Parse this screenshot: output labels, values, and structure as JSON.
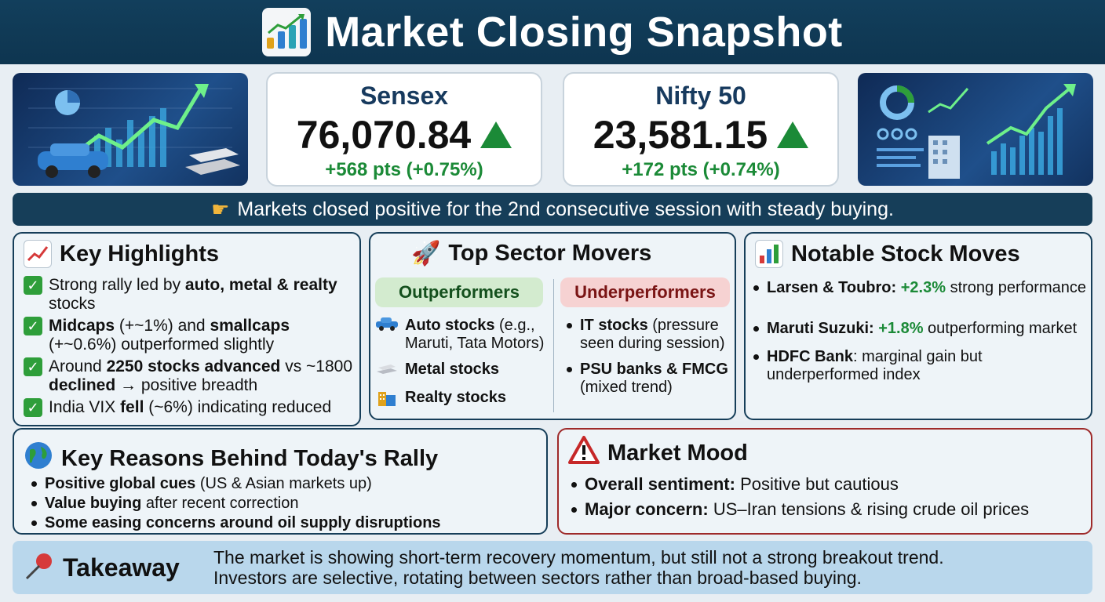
{
  "header": {
    "title": "Market Closing Snapshot",
    "icon": "bar-chart-icon"
  },
  "indices": [
    {
      "name": "Sensex",
      "value": "76,070.84",
      "change": "+568 pts (+0.75%)",
      "direction": "up"
    },
    {
      "name": "Nifty 50",
      "value": "23,581.15",
      "change": "+172 pts (+0.74%)",
      "direction": "up"
    }
  ],
  "banner": {
    "icon": "pointing-hand-icon",
    "text": "Markets closed positive for the 2nd consecutive session with steady buying."
  },
  "highlights": {
    "title": "Key Highlights",
    "icon": "chart-increasing-icon",
    "items": [
      {
        "pre": "Strong rally led by ",
        "bold": "auto, metal & realty",
        "post": " stocks"
      },
      {
        "bold": "Midcaps",
        "post": " (+~1%) and ",
        "bold2": "smallcaps",
        "post2": " (+~0.6%) outperformed slightly"
      },
      {
        "pre": "Around ",
        "bold": "2250 stocks advanced",
        "post": " vs ~1800 ",
        "bold2": "declined",
        "post2": " → positive breadth"
      },
      {
        "pre": "India VIX ",
        "bold": "fell",
        "post": " (~6%) indicating reduced"
      }
    ]
  },
  "sectors": {
    "title": "Top Sector Movers",
    "icon": "rocket-icon",
    "outperformers_label": "Outperformers",
    "underperformers_label": "Underperformers",
    "outperformers": [
      {
        "bold": "Auto stocks",
        "rest": " (e.g., Maruti, Tata Motors)",
        "icon": "car-icon"
      },
      {
        "bold": "Metal stocks",
        "rest": "",
        "icon": "metal-bars-icon"
      },
      {
        "bold": "Realty stocks",
        "rest": "",
        "icon": "building-icon"
      }
    ],
    "underperformers": [
      {
        "bold": "IT stocks",
        "rest": " (pressure seen during session)"
      },
      {
        "bold": "PSU banks & FMCG",
        "rest": " (mixed trend)"
      }
    ]
  },
  "stocks": {
    "title": "Notable Stock Moves",
    "icon": "bar-chart-icon",
    "items": [
      {
        "name": "Larsen & Toubro:",
        "change": "+2.3%",
        "rest": " strong performance"
      },
      {
        "name": "Maruti Suzuki:",
        "change": "+1.8%",
        "rest": " outperforming market"
      },
      {
        "name": "HDFC Bank",
        "change": "",
        "rest": ": marginal gain but underperformed index"
      }
    ]
  },
  "reasons": {
    "title": "Key Reasons Behind Today's Rally",
    "icon": "globe-icon",
    "items": [
      {
        "bold": "Positive global cues",
        "rest": " (US & Asian markets up)"
      },
      {
        "bold": "Value buying",
        "rest": " after recent correction"
      },
      {
        "bold": "Some easing concerns around oil supply disruptions",
        "rest": ""
      }
    ]
  },
  "mood": {
    "title": "Market Mood",
    "icon": "warning-icon",
    "items": [
      {
        "bold": "Overall sentiment:",
        "rest": " Positive but cautious"
      },
      {
        "bold": "Major concern:",
        "rest": " US–Iran tensions & rising crude oil prices"
      }
    ]
  },
  "takeaway": {
    "title": "Takeaway",
    "icon": "pushpin-icon",
    "line1": "The market is showing short-term recovery momentum, but still not a strong breakout trend.",
    "line2": "Investors are selective, rotating between sectors rather than broad-based buying."
  },
  "colors": {
    "header": "#123f5c",
    "positive": "#1b8a37",
    "mood_border": "#9e2a2a"
  }
}
